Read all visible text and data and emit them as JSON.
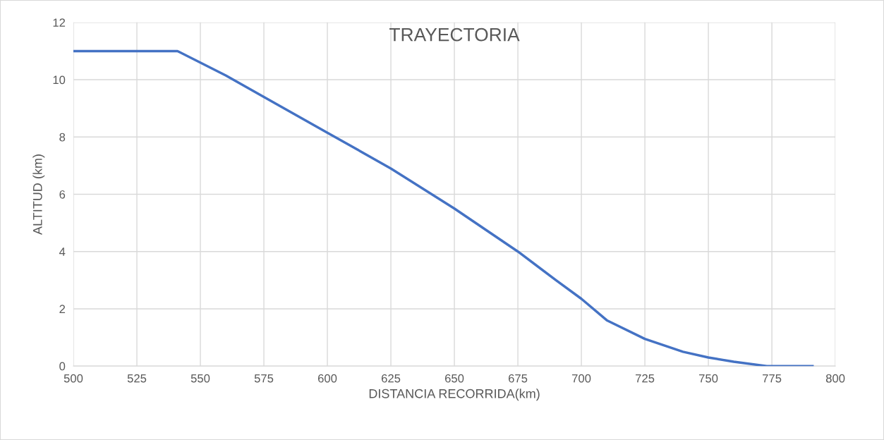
{
  "chart_data": {
    "type": "line",
    "title": "TRAYECTORIA",
    "xlabel": "DISTANCIA RECORRIDA(km)",
    "ylabel": "ALTITUD (km)",
    "x": [
      500,
      541,
      560,
      575,
      600,
      625,
      650,
      675,
      690,
      700,
      710,
      725,
      740,
      750,
      760,
      773,
      791
    ],
    "series": [
      {
        "color": "#4472c4",
        "values": [
          11,
          11,
          10.15,
          9.4,
          8.15,
          6.9,
          5.5,
          4.0,
          3.0,
          2.35,
          1.6,
          0.95,
          0.5,
          0.3,
          0.15,
          0,
          0
        ]
      }
    ],
    "xlim": [
      500,
      800
    ],
    "xticks": [
      500,
      525,
      550,
      575,
      600,
      625,
      650,
      675,
      700,
      725,
      750,
      775,
      800
    ],
    "ylim": [
      0,
      12
    ],
    "yticks": [
      0,
      2,
      4,
      6,
      8,
      10,
      12
    ],
    "grid": true,
    "legend": false,
    "marker": "none",
    "line_style": "solid"
  }
}
